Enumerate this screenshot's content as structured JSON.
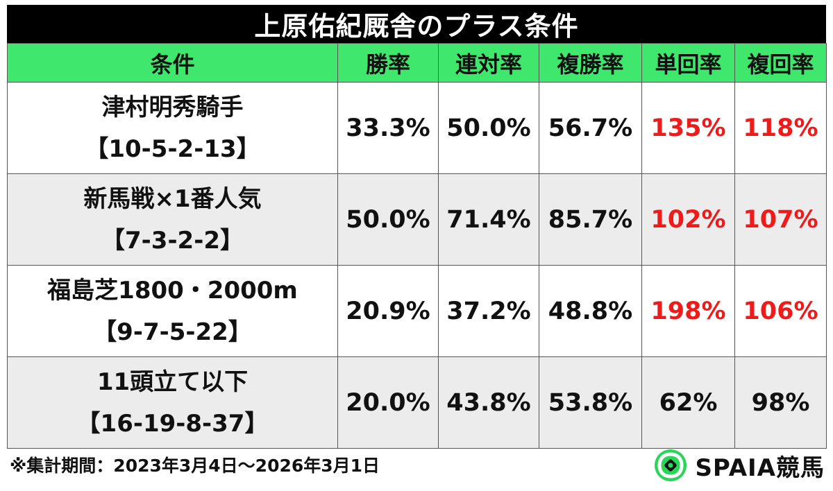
{
  "title": "上原佑紀厩舎のプラス条件",
  "headers": [
    "条件",
    "勝率",
    "連対率",
    "複勝率",
    "単回率",
    "複回率"
  ],
  "rows": [
    {
      "condition": "津村明秀騎手",
      "record": "【10-5-2-13】",
      "win_rate": "33.3%",
      "quinella_rate": "50.0%",
      "show_rate": "56.7%",
      "win_return": "135%",
      "show_return": "118%"
    },
    {
      "condition": "新馬戦×1番人気",
      "record": "【7-3-2-2】",
      "win_rate": "50.0%",
      "quinella_rate": "71.4%",
      "show_rate": "85.7%",
      "win_return": "102%",
      "show_return": "107%"
    },
    {
      "condition": "福島芝1800・2000m",
      "record": "【9-7-5-22】",
      "win_rate": "20.9%",
      "quinella_rate": "37.2%",
      "show_rate": "48.8%",
      "win_return": "198%",
      "show_return": "106%"
    },
    {
      "condition": "11頭立て以下",
      "record": "【16-19-8-37】",
      "win_rate": "20.0%",
      "quinella_rate": "43.8%",
      "show_rate": "53.8%",
      "win_return": "62%",
      "show_return": "98%"
    }
  ],
  "footnote": "※集計期間：2023年3月4日～2026年3月1日",
  "brand": {
    "name": "SPAIA競馬",
    "icon": "spaia-logo-icon"
  },
  "colors": {
    "header_bg": "#3fe86c",
    "title_bg": "#000000",
    "highlight": "#ef1a1a",
    "alt_row": "#ececec"
  }
}
